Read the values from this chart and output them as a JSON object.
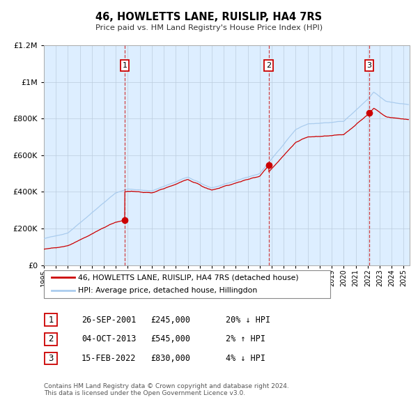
{
  "title": "46, HOWLETTS LANE, RUISLIP, HA4 7RS",
  "subtitle": "Price paid vs. HM Land Registry's House Price Index (HPI)",
  "xmin": 1995.0,
  "xmax": 2025.5,
  "ymin": 0,
  "ymax": 1200000,
  "yticks": [
    0,
    200000,
    400000,
    600000,
    800000,
    1000000,
    1200000
  ],
  "ytick_labels": [
    "£0",
    "£200K",
    "£400K",
    "£600K",
    "£800K",
    "£1M",
    "£1.2M"
  ],
  "xtick_years": [
    1995,
    1996,
    1997,
    1998,
    1999,
    2000,
    2001,
    2002,
    2003,
    2004,
    2005,
    2006,
    2007,
    2008,
    2009,
    2010,
    2011,
    2012,
    2013,
    2014,
    2015,
    2016,
    2017,
    2018,
    2019,
    2020,
    2021,
    2022,
    2023,
    2024,
    2025
  ],
  "sale_color": "#cc0000",
  "hpi_color": "#aaccee",
  "plot_bg": "#ddeeff",
  "grid_color": "#bbccdd",
  "sale_line_label": "46, HOWLETTS LANE, RUISLIP, HA4 7RS (detached house)",
  "hpi_line_label": "HPI: Average price, detached house, Hillingdon",
  "transactions": [
    {
      "num": 1,
      "date": "26-SEP-2001",
      "price": 245000,
      "year": 2001.73,
      "pct": "20%",
      "dir": "↓",
      "vline_x": 2001.73
    },
    {
      "num": 2,
      "date": "04-OCT-2013",
      "price": 545000,
      "year": 2013.75,
      "pct": "2%",
      "dir": "↑",
      "vline_x": 2013.75
    },
    {
      "num": 3,
      "date": "15-FEB-2022",
      "price": 830000,
      "year": 2022.12,
      "pct": "4%",
      "dir": "↓",
      "vline_x": 2022.12
    }
  ],
  "footnote": "Contains HM Land Registry data © Crown copyright and database right 2024.\nThis data is licensed under the Open Government Licence v3.0."
}
